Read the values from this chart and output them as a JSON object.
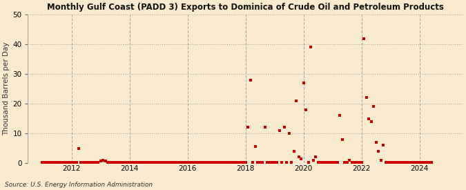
{
  "title": "Monthly Gulf Coast (PADD 3) Exports to Dominica of Crude Oil and Petroleum Products",
  "ylabel": "Thousand Barrels per Day",
  "source": "Source: U.S. Energy Information Administration",
  "background_color": "#faebd0",
  "dot_color": "#cc0000",
  "ylim": [
    0,
    50
  ],
  "yticks": [
    0,
    10,
    20,
    30,
    40,
    50
  ],
  "xlim_start": 2010.5,
  "xlim_end": 2025.5,
  "xticks": [
    2012,
    2014,
    2016,
    2018,
    2020,
    2022,
    2024
  ],
  "data_points": [
    [
      2011.0,
      0.3
    ],
    [
      2011.08,
      0.2
    ],
    [
      2011.17,
      0.2
    ],
    [
      2011.25,
      0.2
    ],
    [
      2011.33,
      0.2
    ],
    [
      2011.42,
      0.2
    ],
    [
      2011.5,
      0.2
    ],
    [
      2011.58,
      0.2
    ],
    [
      2011.67,
      0.2
    ],
    [
      2011.75,
      0.2
    ],
    [
      2011.83,
      0.2
    ],
    [
      2011.92,
      0.2
    ],
    [
      2012.0,
      0.2
    ],
    [
      2012.08,
      0.2
    ],
    [
      2012.17,
      0.2
    ],
    [
      2012.25,
      5.0
    ],
    [
      2012.33,
      0.2
    ],
    [
      2012.42,
      0.2
    ],
    [
      2012.5,
      0.2
    ],
    [
      2012.58,
      0.2
    ],
    [
      2012.67,
      0.2
    ],
    [
      2012.75,
      0.2
    ],
    [
      2012.83,
      0.2
    ],
    [
      2012.92,
      0.2
    ],
    [
      2013.0,
      0.7
    ],
    [
      2013.08,
      1.0
    ],
    [
      2013.17,
      0.7
    ],
    [
      2013.25,
      0.2
    ],
    [
      2013.33,
      0.2
    ],
    [
      2013.42,
      0.2
    ],
    [
      2013.5,
      0.2
    ],
    [
      2013.58,
      0.2
    ],
    [
      2013.67,
      0.2
    ],
    [
      2013.75,
      0.2
    ],
    [
      2013.83,
      0.2
    ],
    [
      2013.92,
      0.2
    ],
    [
      2014.0,
      0.2
    ],
    [
      2014.08,
      0.2
    ],
    [
      2014.17,
      0.2
    ],
    [
      2014.25,
      0.2
    ],
    [
      2014.33,
      0.2
    ],
    [
      2014.42,
      0.2
    ],
    [
      2014.5,
      0.2
    ],
    [
      2014.58,
      0.2
    ],
    [
      2014.67,
      0.2
    ],
    [
      2014.75,
      0.2
    ],
    [
      2014.83,
      0.2
    ],
    [
      2014.92,
      0.2
    ],
    [
      2015.0,
      0.2
    ],
    [
      2015.08,
      0.2
    ],
    [
      2015.17,
      0.2
    ],
    [
      2015.25,
      0.2
    ],
    [
      2015.33,
      0.2
    ],
    [
      2015.42,
      0.2
    ],
    [
      2015.5,
      0.2
    ],
    [
      2015.58,
      0.2
    ],
    [
      2015.67,
      0.2
    ],
    [
      2015.75,
      0.2
    ],
    [
      2015.83,
      0.2
    ],
    [
      2015.92,
      0.2
    ],
    [
      2016.0,
      0.2
    ],
    [
      2016.08,
      0.2
    ],
    [
      2016.17,
      0.2
    ],
    [
      2016.25,
      0.2
    ],
    [
      2016.33,
      0.2
    ],
    [
      2016.42,
      0.2
    ],
    [
      2016.5,
      0.2
    ],
    [
      2016.58,
      0.2
    ],
    [
      2016.67,
      0.2
    ],
    [
      2016.75,
      0.2
    ],
    [
      2016.83,
      0.2
    ],
    [
      2016.92,
      0.2
    ],
    [
      2017.0,
      0.2
    ],
    [
      2017.08,
      0.2
    ],
    [
      2017.17,
      0.2
    ],
    [
      2017.25,
      0.2
    ],
    [
      2017.33,
      0.2
    ],
    [
      2017.42,
      0.2
    ],
    [
      2017.5,
      0.2
    ],
    [
      2017.58,
      0.2
    ],
    [
      2017.67,
      0.2
    ],
    [
      2017.75,
      0.2
    ],
    [
      2017.83,
      0.2
    ],
    [
      2017.92,
      0.2
    ],
    [
      2018.0,
      0.2
    ],
    [
      2018.08,
      12.0
    ],
    [
      2018.17,
      28.0
    ],
    [
      2018.25,
      0.2
    ],
    [
      2018.33,
      5.5
    ],
    [
      2018.42,
      0.2
    ],
    [
      2018.5,
      0.2
    ],
    [
      2018.58,
      0.2
    ],
    [
      2018.67,
      12.0
    ],
    [
      2018.75,
      0.2
    ],
    [
      2018.83,
      0.2
    ],
    [
      2018.92,
      0.2
    ],
    [
      2019.0,
      0.2
    ],
    [
      2019.08,
      0.2
    ],
    [
      2019.17,
      11.0
    ],
    [
      2019.25,
      0.2
    ],
    [
      2019.33,
      12.0
    ],
    [
      2019.42,
      0.2
    ],
    [
      2019.5,
      10.0
    ],
    [
      2019.58,
      0.2
    ],
    [
      2019.67,
      4.0
    ],
    [
      2019.75,
      21.0
    ],
    [
      2019.83,
      2.0
    ],
    [
      2019.92,
      1.5
    ],
    [
      2020.0,
      27.0
    ],
    [
      2020.08,
      18.0
    ],
    [
      2020.17,
      0.2
    ],
    [
      2020.25,
      39.0
    ],
    [
      2020.33,
      1.0
    ],
    [
      2020.42,
      2.0
    ],
    [
      2020.5,
      0.2
    ],
    [
      2020.58,
      0.2
    ],
    [
      2020.67,
      0.2
    ],
    [
      2020.75,
      0.2
    ],
    [
      2020.83,
      0.2
    ],
    [
      2020.92,
      0.2
    ],
    [
      2021.0,
      0.2
    ],
    [
      2021.08,
      0.2
    ],
    [
      2021.17,
      0.2
    ],
    [
      2021.25,
      16.0
    ],
    [
      2021.33,
      8.0
    ],
    [
      2021.42,
      0.2
    ],
    [
      2021.5,
      0.2
    ],
    [
      2021.58,
      1.0
    ],
    [
      2021.67,
      0.2
    ],
    [
      2021.75,
      0.2
    ],
    [
      2021.83,
      0.2
    ],
    [
      2021.92,
      0.2
    ],
    [
      2022.0,
      0.2
    ],
    [
      2022.08,
      42.0
    ],
    [
      2022.17,
      22.0
    ],
    [
      2022.25,
      15.0
    ],
    [
      2022.33,
      14.0
    ],
    [
      2022.42,
      19.0
    ],
    [
      2022.5,
      7.0
    ],
    [
      2022.58,
      4.0
    ],
    [
      2022.67,
      1.0
    ],
    [
      2022.75,
      6.0
    ],
    [
      2022.83,
      0.2
    ],
    [
      2022.92,
      0.2
    ],
    [
      2023.0,
      0.2
    ],
    [
      2023.08,
      0.2
    ],
    [
      2023.17,
      0.2
    ],
    [
      2023.25,
      0.2
    ],
    [
      2023.33,
      0.2
    ],
    [
      2023.42,
      0.2
    ],
    [
      2023.5,
      0.2
    ],
    [
      2023.58,
      0.2
    ],
    [
      2023.67,
      0.2
    ],
    [
      2023.75,
      0.2
    ],
    [
      2023.83,
      0.2
    ],
    [
      2023.92,
      0.2
    ],
    [
      2024.0,
      0.2
    ],
    [
      2024.08,
      0.2
    ],
    [
      2024.17,
      0.2
    ],
    [
      2024.25,
      0.2
    ],
    [
      2024.33,
      0.2
    ],
    [
      2024.42,
      0.2
    ]
  ]
}
